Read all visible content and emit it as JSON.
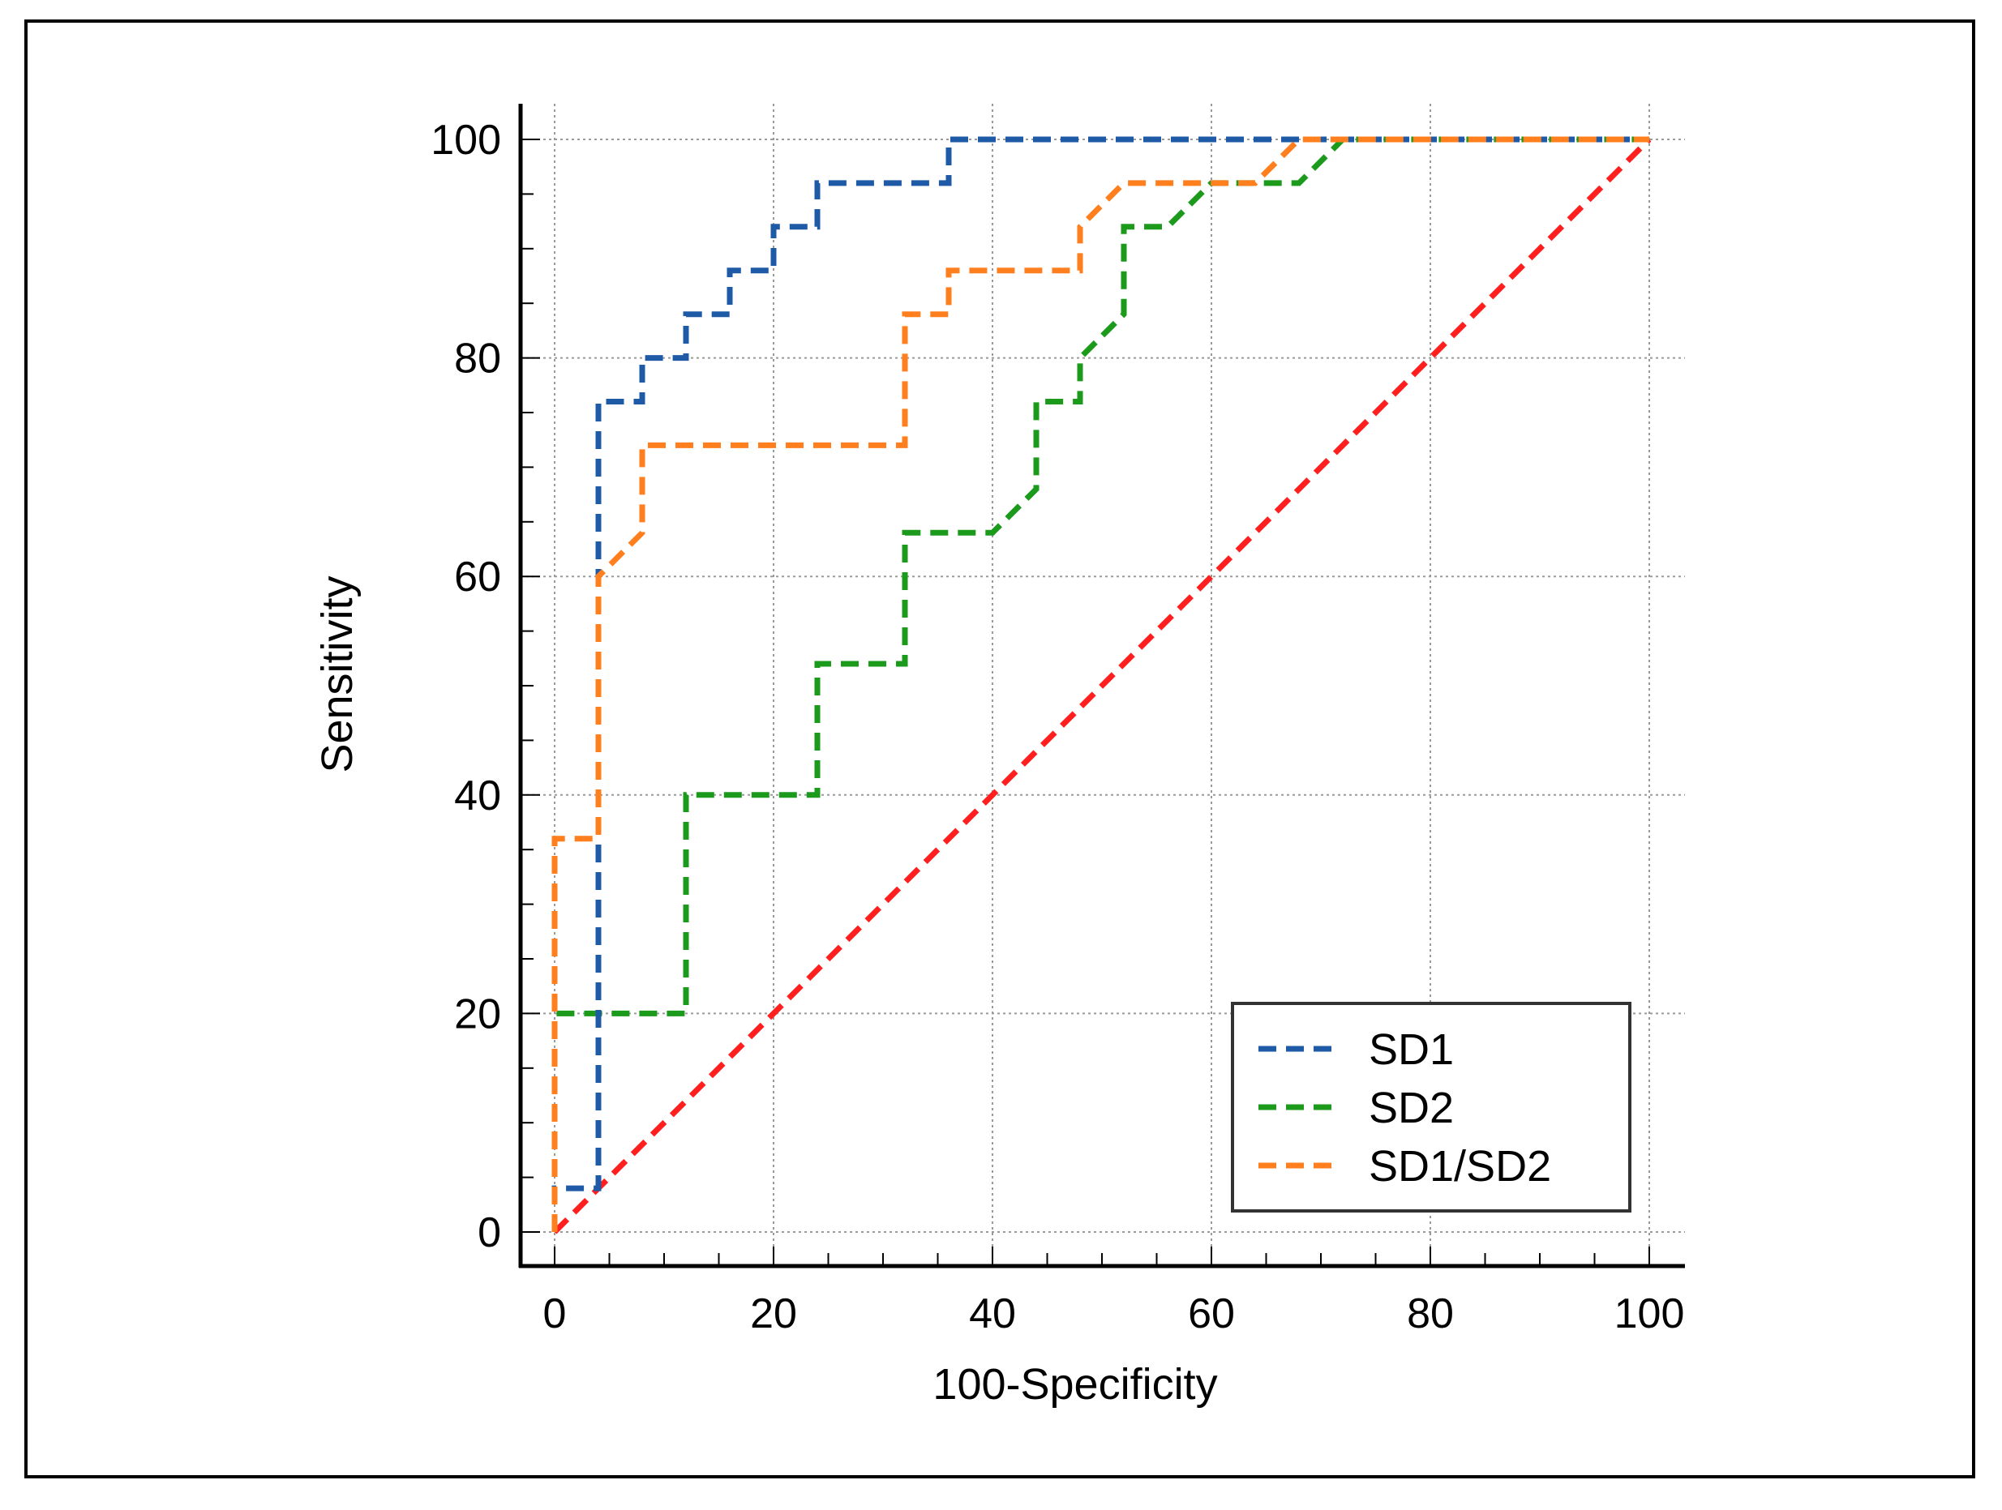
{
  "chart_data": {
    "type": "line",
    "title": "",
    "xlabel": "100-Specificity",
    "ylabel": "Sensitivity",
    "xlim": [
      0,
      100
    ],
    "ylim": [
      0,
      100
    ],
    "xticks": [
      0,
      20,
      40,
      60,
      80,
      100
    ],
    "yticks": [
      0,
      20,
      40,
      60,
      80,
      100
    ],
    "xticks_label": [
      "0",
      "20",
      "40",
      "60",
      "80",
      "100"
    ],
    "yticks_label": [
      "0",
      "20",
      "40",
      "60",
      "80",
      "100"
    ],
    "grid": true,
    "legend_position": "bottom-right",
    "series": [
      {
        "name": "SD1",
        "color": "#1f5aa6",
        "style": "dashed",
        "points": [
          [
            0,
            0
          ],
          [
            0,
            4
          ],
          [
            4,
            4
          ],
          [
            4,
            76
          ],
          [
            8,
            76
          ],
          [
            8,
            80
          ],
          [
            12,
            80
          ],
          [
            12,
            84
          ],
          [
            16,
            84
          ],
          [
            16,
            88
          ],
          [
            20,
            88
          ],
          [
            20,
            92
          ],
          [
            24,
            92
          ],
          [
            24,
            96
          ],
          [
            36,
            96
          ],
          [
            36,
            100
          ],
          [
            100,
            100
          ]
        ]
      },
      {
        "name": "SD2",
        "color": "#1b9a1b",
        "style": "dashed",
        "points": [
          [
            0,
            0
          ],
          [
            0,
            20
          ],
          [
            12,
            20
          ],
          [
            12,
            40
          ],
          [
            24,
            40
          ],
          [
            24,
            52
          ],
          [
            32,
            52
          ],
          [
            32,
            64
          ],
          [
            40,
            64
          ],
          [
            44,
            68
          ],
          [
            44,
            76
          ],
          [
            48,
            76
          ],
          [
            48,
            80
          ],
          [
            52,
            84
          ],
          [
            52,
            92
          ],
          [
            56,
            92
          ],
          [
            60,
            96
          ],
          [
            68,
            96
          ],
          [
            72,
            100
          ],
          [
            100,
            100
          ]
        ]
      },
      {
        "name": "SD1/SD2",
        "color": "#ff7f1f",
        "style": "dashed",
        "points": [
          [
            0,
            0
          ],
          [
            0,
            36
          ],
          [
            4,
            36
          ],
          [
            4,
            60
          ],
          [
            8,
            64
          ],
          [
            8,
            72
          ],
          [
            32,
            72
          ],
          [
            32,
            84
          ],
          [
            36,
            84
          ],
          [
            36,
            88
          ],
          [
            48,
            88
          ],
          [
            48,
            92
          ],
          [
            52,
            96
          ],
          [
            64,
            96
          ],
          [
            68,
            100
          ],
          [
            100,
            100
          ]
        ]
      },
      {
        "name": "reference",
        "color": "#ff1f1f",
        "style": "dashed",
        "points": [
          [
            0,
            0
          ],
          [
            100,
            100
          ]
        ],
        "in_legend": false
      }
    ]
  }
}
